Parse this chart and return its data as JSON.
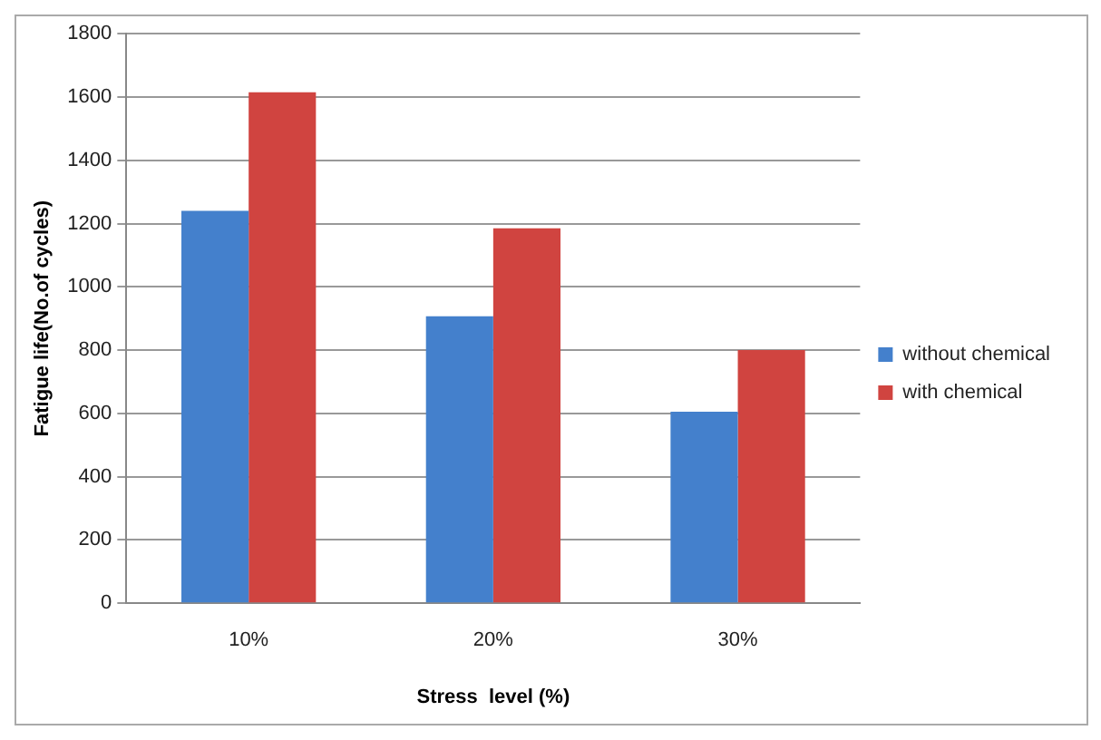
{
  "chart_data": {
    "type": "bar",
    "xlabel": "Stress  level (%)",
    "ylabel": "Fatigue life(No.of cycles)",
    "categories": [
      "10%",
      "20%",
      "30%"
    ],
    "series": [
      {
        "name": "without chemical",
        "color": "#4480cc",
        "values": [
          1240,
          907,
          605
        ]
      },
      {
        "name": "with chemical",
        "color": "#d04440",
        "values": [
          1615,
          1185,
          800
        ]
      }
    ],
    "ylim": [
      0,
      1800
    ],
    "yticks": [
      0,
      200,
      400,
      600,
      800,
      1000,
      1200,
      1400,
      1600,
      1800
    ],
    "grid": "y",
    "legend": "right"
  }
}
